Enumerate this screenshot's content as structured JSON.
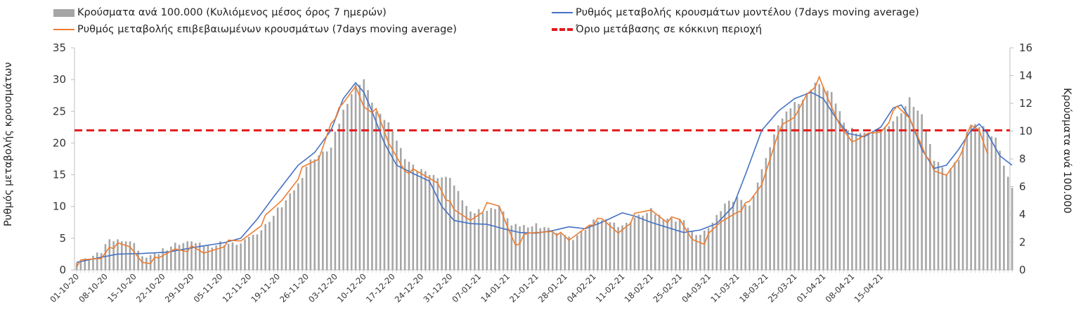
{
  "chart_data": {
    "type": "bar+line",
    "legend": {
      "bars": "Κρούσματα ανά 100.000 (Κυλιόμενος μέσος όρος 7 ημερών)",
      "model": "Ρυθμός μεταβολής κρουσμάτων μοντέλου (7days moving average)",
      "confirmed": "Ρυθμός μεταβολής επιβεβαιωμένων κρουσμάτων (7days moving average)",
      "threshold": "Όριο μετάβασης σε κόκκινη περιοχή"
    },
    "ylabel_left": "Ρυθμός μεταβολής κρουσμάτων",
    "ylabel_right": "Κρούσματα ανά 100.000",
    "ylim_left": [
      0,
      35
    ],
    "ylim_right": [
      0,
      16
    ],
    "yticks_left": [
      "0",
      "5",
      "10",
      "15",
      "20",
      "25",
      "30",
      "35"
    ],
    "yticks_right": [
      "0",
      "2",
      "4",
      "6",
      "8",
      "10",
      "12",
      "14",
      "16"
    ],
    "x_tick_labels": [
      "01-10-20",
      "08-10-20",
      "15-10-20",
      "22-10-20",
      "29-10-20",
      "05-11-20",
      "12-11-20",
      "19-11-20",
      "26-11-20",
      "03-12-20",
      "10-12-20",
      "17-12-20",
      "24-12-20",
      "31-12-20",
      "07-01-21",
      "14-01-21",
      "21-01-21",
      "28-01-21",
      "04-02-21",
      "11-02-21",
      "18-02-21",
      "25-02-21",
      "04-03-21",
      "11-03-21",
      "18-03-21",
      "25-03-21",
      "01-04-21",
      "08-04-21",
      "15-04-21"
    ],
    "threshold_left": 22,
    "bars_right_anchors": [
      [
        0,
        0.5
      ],
      [
        6,
        1.3
      ],
      [
        8,
        2.1
      ],
      [
        11,
        2.2
      ],
      [
        14,
        1.9
      ],
      [
        16,
        0.9
      ],
      [
        20,
        1.2
      ],
      [
        24,
        1.9
      ],
      [
        28,
        2
      ],
      [
        32,
        1.7
      ],
      [
        36,
        1.9
      ],
      [
        40,
        1.9
      ],
      [
        45,
        2.9
      ],
      [
        50,
        4.6
      ],
      [
        54,
        6.2
      ],
      [
        57,
        7.9
      ],
      [
        62,
        8.8
      ],
      [
        65,
        11.5
      ],
      [
        68,
        13.3
      ],
      [
        70,
        13.6
      ],
      [
        73,
        11.4
      ],
      [
        76,
        10.6
      ],
      [
        80,
        8.1
      ],
      [
        83,
        7.2
      ],
      [
        87,
        6.8
      ],
      [
        91,
        6.6
      ],
      [
        93,
        5.6
      ],
      [
        96,
        4.1
      ],
      [
        100,
        4.3
      ],
      [
        103,
        4.6
      ],
      [
        106,
        3.2
      ],
      [
        110,
        3.2
      ],
      [
        114,
        3.1
      ],
      [
        118,
        2.5
      ],
      [
        121,
        2.3
      ],
      [
        124,
        3
      ],
      [
        127,
        3.6
      ],
      [
        130,
        3.5
      ],
      [
        133,
        3.1
      ],
      [
        136,
        3.8
      ],
      [
        140,
        4.2
      ],
      [
        143,
        3.8
      ],
      [
        146,
        3.6
      ],
      [
        148,
        3.5
      ],
      [
        151,
        2.4
      ],
      [
        154,
        3
      ],
      [
        158,
        4.8
      ],
      [
        161,
        5.1
      ],
      [
        164,
        4.6
      ],
      [
        167,
        7.2
      ],
      [
        171,
        10.5
      ],
      [
        174,
        11.7
      ],
      [
        177,
        12.3
      ],
      [
        180,
        13.5
      ],
      [
        184,
        12.7
      ],
      [
        188,
        10.1
      ],
      [
        192,
        9.8
      ],
      [
        196,
        10
      ],
      [
        200,
        11
      ],
      [
        203,
        12.2
      ],
      [
        206,
        11.1
      ],
      [
        209,
        8
      ],
      [
        212,
        7
      ],
      [
        215,
        8
      ],
      [
        218,
        10.5
      ],
      [
        221,
        10.4
      ],
      [
        224,
        9.4
      ],
      [
        226,
        7.6
      ],
      [
        228,
        5.8
      ]
    ],
    "model_left_anchors": [
      [
        0,
        1.2
      ],
      [
        6,
        2
      ],
      [
        10,
        2.5
      ],
      [
        16,
        2.6
      ],
      [
        22,
        2.8
      ],
      [
        30,
        3.7
      ],
      [
        36,
        4.3
      ],
      [
        40,
        5
      ],
      [
        44,
        8
      ],
      [
        48,
        11.5
      ],
      [
        54,
        16.5
      ],
      [
        58,
        18.5
      ],
      [
        62,
        22
      ],
      [
        65,
        27
      ],
      [
        68,
        29.5
      ],
      [
        70,
        28
      ],
      [
        72,
        25
      ],
      [
        75,
        20
      ],
      [
        78,
        16.5
      ],
      [
        82,
        15.2
      ],
      [
        86,
        14
      ],
      [
        89,
        10
      ],
      [
        92,
        7.8
      ],
      [
        96,
        7.3
      ],
      [
        100,
        7.2
      ],
      [
        104,
        6.5
      ],
      [
        108,
        5.9
      ],
      [
        112,
        5.8
      ],
      [
        116,
        6.2
      ],
      [
        120,
        6.8
      ],
      [
        124,
        6.5
      ],
      [
        128,
        7.5
      ],
      [
        133,
        9
      ],
      [
        136,
        8.5
      ],
      [
        140,
        7.5
      ],
      [
        144,
        6.7
      ],
      [
        148,
        5.9
      ],
      [
        152,
        6.3
      ],
      [
        156,
        7.3
      ],
      [
        160,
        10
      ],
      [
        163,
        15
      ],
      [
        167,
        22
      ],
      [
        171,
        25
      ],
      [
        175,
        27
      ],
      [
        179,
        28
      ],
      [
        182,
        27
      ],
      [
        185,
        24
      ],
      [
        188,
        21.5
      ],
      [
        192,
        21
      ],
      [
        196,
        22.5
      ],
      [
        199,
        25.5
      ],
      [
        201,
        26
      ],
      [
        203,
        24
      ],
      [
        206,
        19
      ],
      [
        209,
        16
      ],
      [
        212,
        16.5
      ],
      [
        215,
        19
      ],
      [
        218,
        22
      ],
      [
        220,
        23
      ],
      [
        222,
        21.5
      ],
      [
        225,
        18
      ],
      [
        228,
        16.5
      ]
    ],
    "confirmed_left_anchors": [
      [
        0,
        1
      ],
      [
        6,
        2
      ],
      [
        8,
        4
      ],
      [
        13,
        3.6
      ],
      [
        16,
        1.5
      ],
      [
        20,
        1.6
      ],
      [
        24,
        3.5
      ],
      [
        28,
        3.4
      ],
      [
        31,
        2.6
      ],
      [
        36,
        4.2
      ],
      [
        40,
        4.5
      ],
      [
        45,
        7.5
      ],
      [
        50,
        11
      ],
      [
        55,
        15.8
      ],
      [
        59,
        17.5
      ],
      [
        62,
        23.5
      ],
      [
        65,
        26
      ],
      [
        68,
        29
      ],
      [
        70,
        26
      ],
      [
        73,
        25
      ],
      [
        76,
        20
      ],
      [
        80,
        16
      ],
      [
        84,
        15
      ],
      [
        88,
        14
      ],
      [
        92,
        9.2
      ],
      [
        96,
        8
      ],
      [
        100,
        10.2
      ],
      [
        103,
        10
      ],
      [
        105,
        7
      ],
      [
        107,
        4.3
      ],
      [
        110,
        5.5
      ],
      [
        113,
        6
      ],
      [
        116,
        6.5
      ],
      [
        120,
        4.5
      ],
      [
        125,
        7.5
      ],
      [
        128,
        7.8
      ],
      [
        132,
        6
      ],
      [
        136,
        8.5
      ],
      [
        140,
        9.5
      ],
      [
        144,
        8
      ],
      [
        147,
        7.8
      ],
      [
        150,
        5
      ],
      [
        153,
        4.6
      ],
      [
        157,
        7.5
      ],
      [
        161,
        9.5
      ],
      [
        164,
        10.5
      ],
      [
        167,
        13.5
      ],
      [
        171,
        22
      ],
      [
        175,
        24
      ],
      [
        178,
        28
      ],
      [
        181,
        30
      ],
      [
        183,
        27
      ],
      [
        186,
        23
      ],
      [
        190,
        20
      ],
      [
        193,
        21.5
      ],
      [
        196,
        22
      ],
      [
        200,
        25.5
      ],
      [
        203,
        24
      ],
      [
        206,
        20
      ],
      [
        209,
        15.3
      ],
      [
        212,
        15
      ],
      [
        215,
        18
      ],
      [
        218,
        22.5
      ],
      [
        220,
        22
      ],
      [
        222,
        18.5
      ]
    ]
  }
}
